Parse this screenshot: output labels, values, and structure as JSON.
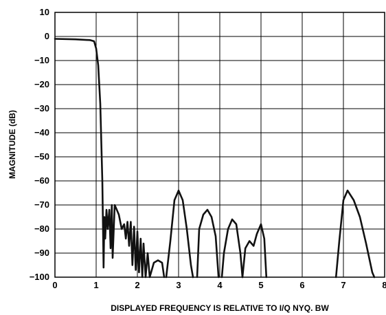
{
  "chart_data": {
    "type": "line",
    "title": "",
    "xlabel": "DISPLAYED FREQUENCY IS RELATIVE TO I/Q NYQ. BW",
    "ylabel": "MAGNITUDE (dB)",
    "xlim": [
      0,
      8
    ],
    "ylim": [
      -100,
      10
    ],
    "xticks": [
      0,
      1,
      2,
      3,
      4,
      5,
      6,
      7,
      8
    ],
    "yticks": [
      10,
      0,
      -10,
      -20,
      -30,
      -40,
      -50,
      -60,
      -70,
      -80,
      -90,
      -100
    ],
    "ytick_labels": [
      "10",
      "0",
      "−10",
      "−20",
      "−30",
      "−40",
      "−50",
      "−60",
      "−70",
      "−80",
      "−90",
      "−100"
    ],
    "grid": true,
    "legend": "none",
    "series": [
      {
        "segments": [
          [
            [
              0,
              -1
            ],
            [
              0.5,
              -1.2
            ],
            [
              0.85,
              -1.5
            ],
            [
              0.95,
              -2
            ],
            [
              1.0,
              -5
            ],
            [
              1.05,
              -12
            ],
            [
              1.1,
              -28
            ],
            [
              1.15,
              -60
            ],
            [
              1.18,
              -96
            ],
            [
              1.2,
              -75
            ],
            [
              1.22,
              -84
            ],
            [
              1.25,
              -72
            ],
            [
              1.28,
              -80
            ],
            [
              1.32,
              -72
            ],
            [
              1.35,
              -88
            ],
            [
              1.38,
              -70
            ],
            [
              1.4,
              -92
            ],
            [
              1.45,
              -70
            ],
            [
              1.55,
              -74
            ],
            [
              1.62,
              -80
            ],
            [
              1.68,
              -78
            ],
            [
              1.72,
              -84
            ],
            [
              1.76,
              -77
            ],
            [
              1.8,
              -87
            ],
            [
              1.84,
              -77
            ],
            [
              1.88,
              -95
            ],
            [
              1.92,
              -79
            ],
            [
              1.96,
              -97
            ],
            [
              2.0,
              -81
            ],
            [
              2.04,
              -98
            ],
            [
              2.08,
              -84
            ],
            [
              2.12,
              -100
            ],
            [
              2.15,
              -86
            ],
            [
              2.2,
              -100
            ],
            [
              2.25,
              -90
            ],
            [
              2.3,
              -100
            ],
            [
              2.4,
              -94
            ],
            [
              2.5,
              -93
            ],
            [
              2.6,
              -94
            ],
            [
              2.65,
              -100
            ]
          ],
          [
            [
              2.7,
              -100
            ],
            [
              2.8,
              -85
            ],
            [
              2.9,
              -68
            ],
            [
              3.0,
              -64
            ],
            [
              3.1,
              -68
            ],
            [
              3.2,
              -80
            ],
            [
              3.3,
              -95
            ],
            [
              3.35,
              -100
            ]
          ],
          [
            [
              3.45,
              -100
            ],
            [
              3.5,
              -80
            ],
            [
              3.6,
              -74
            ],
            [
              3.7,
              -72
            ],
            [
              3.8,
              -75
            ],
            [
              3.9,
              -83
            ],
            [
              3.97,
              -100
            ]
          ],
          [
            [
              4.05,
              -100
            ],
            [
              4.1,
              -90
            ],
            [
              4.2,
              -80
            ],
            [
              4.3,
              -76
            ],
            [
              4.4,
              -78
            ],
            [
              4.5,
              -90
            ],
            [
              4.55,
              -100
            ]
          ],
          [
            [
              4.55,
              -100
            ],
            [
              4.62,
              -88
            ],
            [
              4.72,
              -85
            ],
            [
              4.82,
              -87
            ],
            [
              4.9,
              -82
            ],
            [
              5.0,
              -78
            ],
            [
              5.08,
              -84
            ],
            [
              5.13,
              -100
            ]
          ],
          [
            [
              6.82,
              -100
            ],
            [
              6.9,
              -85
            ],
            [
              7.0,
              -68
            ],
            [
              7.1,
              -64
            ],
            [
              7.25,
              -68
            ],
            [
              7.4,
              -75
            ],
            [
              7.55,
              -86
            ],
            [
              7.7,
              -98
            ],
            [
              7.75,
              -100
            ]
          ]
        ]
      }
    ]
  }
}
